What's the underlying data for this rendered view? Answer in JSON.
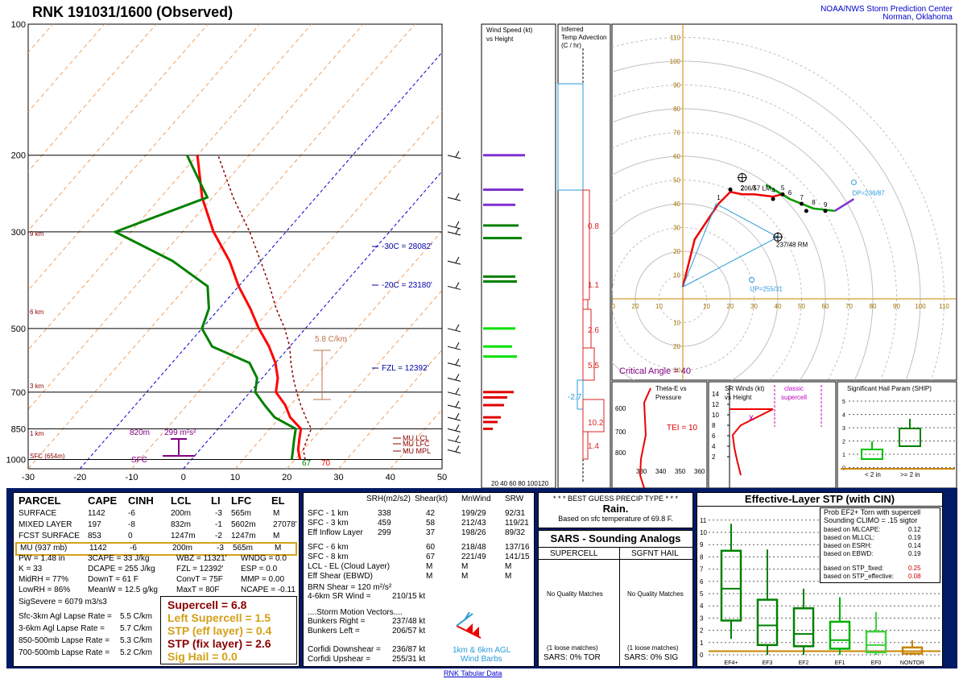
{
  "header": {
    "title": "RNK   191031/1600  (Observed)",
    "org_line1": "NOAA/NWS Storm Prediction Center",
    "org_line2": "Norman, Oklahoma"
  },
  "skewt": {
    "pressure_ticks": [
      "100",
      "200",
      "300",
      "500",
      "700",
      "850",
      "1000"
    ],
    "temp_ticks": [
      "-30",
      "-20",
      "-10",
      "0",
      "10",
      "20",
      "30",
      "40",
      "50"
    ],
    "height_labels": [
      "9 km",
      "6 km",
      "3 km",
      "1 km",
      "SFC (654m)"
    ],
    "level_annotations": [
      "-30C = 28082'",
      "-20C = 23180'",
      "FZL = 12392'"
    ],
    "parcel_levels": [
      "MU LCL",
      "MU LFC",
      "MU MPL"
    ],
    "storm_motion_label": "5.8 C/km",
    "srh_box": {
      "left": "820m",
      "value": "299 m²s²",
      "sfc": "SFC"
    },
    "sfc_td": "67",
    "sfc_t": "70",
    "profiles": {
      "pressures": [
        1000,
        950,
        900,
        850,
        800,
        750,
        700,
        650,
        600,
        550,
        500,
        450,
        400,
        350,
        300,
        250,
        200
      ],
      "temperature": [
        21,
        19,
        17.5,
        16,
        12,
        9,
        5,
        3,
        0,
        -4,
        -9,
        -14,
        -20,
        -26,
        -34,
        -42,
        -50
      ],
      "dewpoint": [
        19.4,
        18,
        16.5,
        15,
        9,
        5,
        1,
        -1,
        -5,
        -15,
        -20,
        -22,
        -26,
        -37,
        -53,
        -41,
        -52
      ],
      "virtual_parcel": [
        22,
        20,
        19,
        18,
        15,
        12,
        9,
        6,
        3,
        0,
        -4,
        -9,
        -14,
        -20,
        -27,
        -36,
        -46
      ]
    }
  },
  "wind_speed_panel": {
    "title_line1": "Wind Speed (kt)",
    "title_line2": "vs Height",
    "axis": "20 40 60 80 100120"
  },
  "temp_adv_panel": {
    "title_line1": "Inferred",
    "title_line2": "Temp Advection",
    "title_line3": "(C / hr)",
    "values": [
      "0.8",
      "1.1",
      "2.6",
      "5.5",
      "-2.7",
      "10.2",
      "1.4"
    ]
  },
  "hodograph": {
    "x_ticks": [
      "10",
      "20",
      "30",
      "40",
      "50",
      "60",
      "70",
      "80",
      "90",
      "100",
      "110"
    ],
    "y_ticks": [
      "10",
      "20",
      "30",
      "40",
      "50",
      "60",
      "70",
      "80",
      "90",
      "100",
      "110"
    ],
    "left_mover": "206/57 LM",
    "right_mover": "237/48 RM",
    "downshear": "DP=236/87",
    "upshear": "UP=255/31",
    "critical_angle": "Critical Angle = 40",
    "height_marks": [
      "1",
      "2",
      "3",
      "4",
      "5",
      "6",
      "7",
      "8",
      "9"
    ]
  },
  "theta_panel": {
    "title_line1": "Theta-E vs",
    "title_line2": "Pressure",
    "tei": "TEI = 10",
    "y_ticks": [
      "600",
      "700",
      "800"
    ],
    "x_ticks": [
      "330",
      "340",
      "350",
      "360"
    ]
  },
  "srwind_panel": {
    "title_line1": "SR Winds (kt)",
    "title_line2": "vs Height",
    "note_line1": "classic",
    "note_line2": "supercell",
    "y_ticks": [
      "14",
      "12",
      "10",
      "8",
      "6",
      "4",
      "2"
    ]
  },
  "ship_panel": {
    "title": "Significant Hail Param (SHIP)",
    "y_ticks": [
      "5",
      "4",
      "3",
      "2",
      "1",
      "0"
    ],
    "x_labels": [
      "< 2 in",
      ">= 2 in"
    ]
  },
  "parcel_table": {
    "headers": [
      "PARCEL",
      "CAPE",
      "CINH",
      "LCL",
      "LI",
      "LFC",
      "EL"
    ],
    "rows": [
      [
        "SURFACE",
        "1142",
        "-6",
        "200m",
        "-3",
        "565m",
        "M"
      ],
      [
        "MIXED LAYER",
        "197",
        "-8",
        "832m",
        "-1",
        "5602m",
        "27078'"
      ],
      [
        "FCST SURFACE",
        "853",
        "0",
        "1247m",
        "-2",
        "1247m",
        "M"
      ],
      [
        "MU  (937 mb)",
        "1142",
        "-6",
        "200m",
        "-3",
        "565m",
        "M"
      ]
    ],
    "indices": [
      [
        "PW = 1.48 in",
        "3CAPE = 33 J/kg",
        "WBZ = 11321'",
        "WNDG = 0.0"
      ],
      [
        "K = 33",
        "DCAPE = 255 J/kg",
        "FZL = 12392'",
        "ESP = 0.0"
      ],
      [
        "MidRH = 77%",
        "DownT = 61 F",
        "ConvT = 75F",
        "MMP = 0.00"
      ],
      [
        "LowRH = 86%",
        "MeanW = 12.5 g/kg",
        "MaxT = 80F",
        "NCAPE = -0.11"
      ]
    ],
    "sig_severe": "SigSevere = 6079 m3/s3",
    "lapse": [
      [
        "Sfc-3km Agl Lapse Rate =",
        "5.5 C/km"
      ],
      [
        "3-6km Agl Lapse Rate =",
        "5.7 C/km"
      ],
      [
        "850-500mb Lapse Rate =",
        "5.3 C/km"
      ],
      [
        "700-500mb Lapse Rate =",
        "5.2 C/km"
      ]
    ],
    "composite": [
      {
        "text": "Supercell = 6.8",
        "color": "#8b0000"
      },
      {
        "text": "Left Supercell = 1.5",
        "color": "#d4a017"
      },
      {
        "text": "STP (eff layer) = 0.4",
        "color": "#d4a017"
      },
      {
        "text": "STP (fix layer) = 2.6",
        "color": "#8b0000"
      },
      {
        "text": "Sig Hail = 0.0",
        "color": "#d4a017"
      }
    ]
  },
  "kinematic_table": {
    "headers": [
      "SRH(m2/s2)",
      "Shear(kt)",
      "MnWind",
      "SRW"
    ],
    "rows": [
      [
        "SFC - 1 km",
        "338",
        "42",
        "199/29",
        "92/31"
      ],
      [
        "SFC - 3 km",
        "459",
        "58",
        "212/43",
        "119/21"
      ],
      [
        "Eff Inflow Layer",
        "299",
        "37",
        "198/26",
        "89/32"
      ],
      [
        "SFC - 6 km",
        "",
        "60",
        "218/48",
        "137/16"
      ],
      [
        "SFC - 8 km",
        "",
        "67",
        "221/49",
        "141/15"
      ],
      [
        "LCL - EL (Cloud Layer)",
        "",
        "M",
        "M",
        "M"
      ],
      [
        "Eff Shear (EBWD)",
        "",
        "M",
        "M",
        "M"
      ]
    ],
    "brn_shear": "BRN Shear =  120 m²/s²",
    "sr_wind": "4-6km SR Wind =",
    "sr_wind_val": "210/15 kt",
    "storm_motion_title": "....Storm Motion Vectors....",
    "motion": [
      [
        "Bunkers Right =",
        "237/48 kt"
      ],
      [
        "Bunkers Left =",
        "206/57 kt"
      ],
      [
        "Corfidi Downshear =",
        "236/87 kt"
      ],
      [
        "Corfidi Upshear =",
        "255/31 kt"
      ]
    ],
    "barbs_label_line1": "1km & 6km AGL",
    "barbs_label_line2": "Wind Barbs"
  },
  "precip": {
    "title": "* * * BEST GUESS PRECIP TYPE * * *",
    "value": "Rain.",
    "note": "Based on sfc temperature of 69.8 F."
  },
  "sars": {
    "title": "SARS - Sounding Analogs",
    "col1": "SUPERCELL",
    "col2": "SGFNT HAIL",
    "no_match": "No Quality Matches",
    "loose1": "(1 loose matches)",
    "loose2": "(1 loose matches)",
    "tor": "SARS:  0% TOR",
    "sig": "SARS:  0% SIG"
  },
  "stp_panel": {
    "title": "Effective-Layer STP (with CIN)",
    "prob_line1": "Prob EF2+ Torn with supercell",
    "prob_line2": "Sounding CLIMO = .15 sigtor",
    "probs": [
      [
        "based on MLCAPE:",
        "0.12"
      ],
      [
        "based on MLLCL:",
        "0.19"
      ],
      [
        "based on ESRH:",
        "0.14"
      ],
      [
        "based on EBWD:",
        "0.19"
      ],
      [
        "based on STP_fixed:",
        "0.25"
      ],
      [
        "based on STP_effective:",
        "0.08"
      ]
    ],
    "y_ticks": [
      "11",
      "10",
      "9",
      "8",
      "7",
      "6",
      "5",
      "4",
      "3",
      "2",
      "1",
      "0"
    ],
    "categories": [
      "EF4+",
      "EF3",
      "EF2",
      "EF1",
      "EF0",
      "NONTOR"
    ]
  },
  "footer_link": "RNK Tabular Data",
  "colors": {
    "temp": "#ff0000",
    "dewpoint": "#008000",
    "parcel": "#8b0000",
    "bg": "#001a66",
    "accent": "#d4a017"
  }
}
